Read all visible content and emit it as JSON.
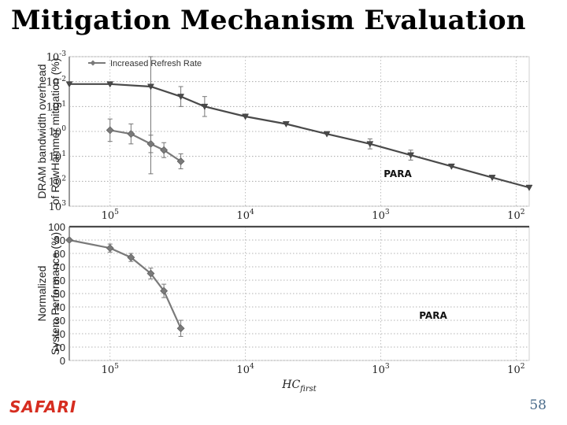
{
  "slide": {
    "title": "Mitigation Mechanism Evaluation",
    "logo": "SAFARI",
    "page_number": "58",
    "xlabel_main": "HC",
    "xlabel_sub": "first"
  },
  "colors": {
    "logo": "#d62d20",
    "page_number": "#4a6b8a",
    "series_dark": "#4a4a4a",
    "series_light": "#7a7a7a"
  },
  "chart_data": [
    {
      "type": "line",
      "ylabel_lines": [
        "DRAM bandwidth overhead",
        "of RowHammer mitigation (%)"
      ],
      "xscale": "log",
      "x_reversed": true,
      "xlim": [
        200000,
        80
      ],
      "x_tick_values": [
        100000,
        10000,
        1000,
        100
      ],
      "x_tick_labels": [
        {
          "base": "10",
          "exp": "5"
        },
        {
          "base": "10",
          "exp": "4"
        },
        {
          "base": "10",
          "exp": "3"
        },
        {
          "base": "10",
          "exp": "2"
        }
      ],
      "y_tick_labels": [
        {
          "base": "10",
          "exp": "-3"
        },
        {
          "base": "10",
          "exp": "-2"
        },
        {
          "base": "10",
          "exp": "-1"
        },
        {
          "base": "10",
          "exp": "0"
        },
        {
          "base": "10",
          "exp": "1"
        },
        {
          "base": "10",
          "exp": "2"
        },
        {
          "base": "10",
          "exp": "3"
        }
      ],
      "grid": true,
      "legend": {
        "placement": "top-left",
        "entries": [
          "Increased Refresh Rate"
        ]
      },
      "series": [
        {
          "name": "Increased Refresh Rate",
          "marker": "diamond",
          "x": [
            100000,
            70000,
            50000,
            40000,
            30000
          ],
          "y": [
            -0.05,
            0.1,
            0.5,
            0.75,
            1.2
          ],
          "err": [
            0.45,
            0.4,
            0.35,
            0.3,
            0.3
          ]
        },
        {
          "label": "PARA",
          "label_position": "middle-right",
          "marker": "triangle-down",
          "x": [
            200000,
            100000,
            50000,
            30000,
            20000,
            10000,
            5000,
            2500,
            1200,
            600,
            300,
            150,
            80
          ],
          "y": [
            -1.9,
            -1.9,
            -1.8,
            -1.4,
            -1.0,
            -0.6,
            -0.3,
            0.1,
            0.5,
            0.95,
            1.4,
            1.85,
            2.25
          ],
          "err": [
            0,
            0,
            3.5,
            0.4,
            0.4,
            0,
            0,
            0,
            0.2,
            0.2,
            0,
            0,
            0
          ]
        }
      ]
    },
    {
      "type": "line",
      "ylabel_lines": [
        "Normalized",
        "System Performance (%)"
      ],
      "xscale": "log",
      "x_reversed": true,
      "xlim": [
        200000,
        80
      ],
      "x_tick_values": [
        100000,
        10000,
        1000,
        100
      ],
      "x_tick_labels": [
        {
          "base": "10",
          "exp": "5"
        },
        {
          "base": "10",
          "exp": "4"
        },
        {
          "base": "10",
          "exp": "3"
        },
        {
          "base": "10",
          "exp": "2"
        }
      ],
      "ylim": [
        0,
        100
      ],
      "y_ticks": [
        0,
        10,
        20,
        30,
        40,
        50,
        60,
        70,
        80,
        90,
        100
      ],
      "y_tick_labels": [
        "0",
        "10",
        "20",
        "30",
        "40",
        "50",
        "60",
        "70",
        "80",
        "90",
        "100"
      ],
      "grid": true,
      "series": [
        {
          "name": "Increased Refresh Rate",
          "marker": "diamond",
          "x": [
            200000,
            100000,
            70000,
            50000,
            40000,
            30000
          ],
          "y": [
            90,
            84,
            77,
            65,
            52,
            24
          ],
          "err": [
            0,
            3,
            3,
            4,
            5,
            6
          ]
        },
        {
          "label": "PARA",
          "label_position": "middle-right",
          "marker": "none",
          "x": [
            200000,
            80
          ],
          "y": [
            100,
            100
          ],
          "err": [
            0,
            0
          ]
        }
      ]
    }
  ]
}
